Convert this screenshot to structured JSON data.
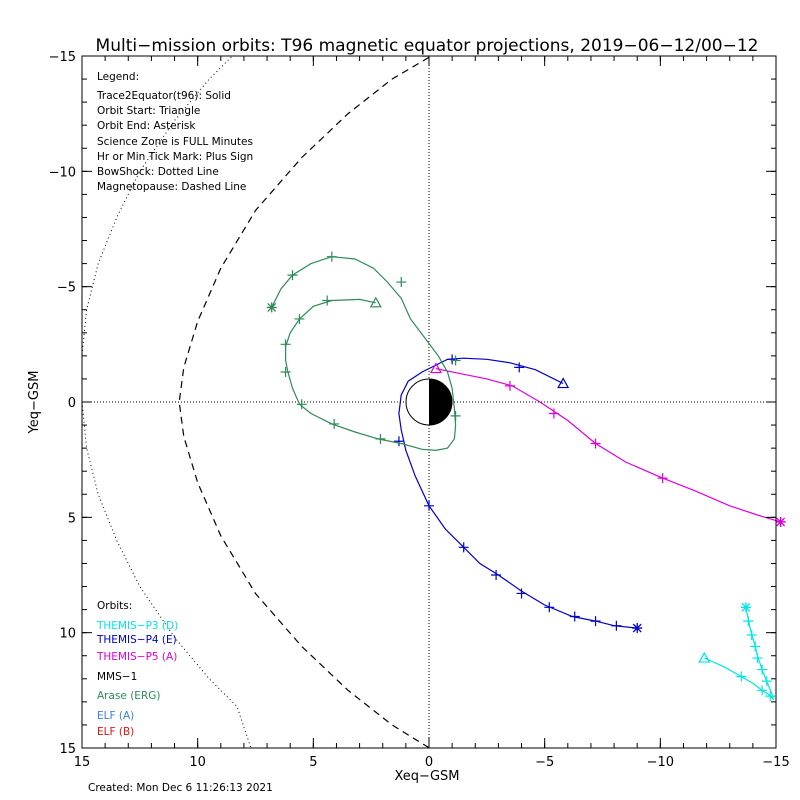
{
  "chart_data": {
    "type": "line",
    "title": "Multi−mission orbits: T96 magnetic equator projections, 2019−06−12/00−12",
    "xlabel": "Xeq−GSM",
    "ylabel": "Yeq−GSM",
    "xlim": [
      15,
      -15
    ],
    "ylim": [
      -15,
      15
    ],
    "x_ticks": [
      15,
      10,
      5,
      0,
      -5,
      -10,
      -15
    ],
    "x_tick_labels": [
      "15",
      "10",
      "5",
      "0",
      "−5",
      "−10",
      "−15"
    ],
    "y_ticks": [
      -15,
      -10,
      -5,
      0,
      5,
      10,
      15
    ],
    "y_tick_labels": [
      "−15",
      "−10",
      "−5",
      "0",
      "5",
      "10",
      "15"
    ],
    "legend": {
      "header": "Legend:",
      "lines": [
        "Trace2Equator(t96): Solid",
        "Orbit Start: Triangle",
        "Orbit End: Asterisk",
        "Science Zone is FULL Minutes",
        "Hr or Min Tick Mark: Plus Sign",
        "BowShock: Dotted Line",
        "Magnetopause: Dashed Line"
      ]
    },
    "orbits_header": "Orbits:",
    "orbits_legend": [
      {
        "label": "THEMIS−P3 (D)",
        "color": "#00e5e5"
      },
      {
        "label": "THEMIS−P4 (E)",
        "color": "#0000c8"
      },
      {
        "label": "THEMIS−P5 (A)",
        "color": "#e000e0"
      },
      {
        "label": "MMS−1",
        "color": "#000000"
      },
      {
        "label": "Arase (ERG)",
        "color": "#2e8b57"
      },
      {
        "label": "ELF (A)",
        "color": "#3a7fdc"
      },
      {
        "label": "ELF (B)",
        "color": "#dc1414"
      }
    ],
    "created": "Created: Mon Dec  6 11:26:13 2021",
    "boundaries": {
      "bowshock": {
        "style": "dotted",
        "points": [
          [
            8.3,
            -15.2
          ],
          [
            9.5,
            -14
          ],
          [
            11,
            -12.2
          ],
          [
            12.5,
            -10
          ],
          [
            13.5,
            -8
          ],
          [
            14.3,
            -6
          ],
          [
            14.8,
            -4
          ],
          [
            15,
            -2
          ],
          [
            15,
            0
          ],
          [
            14.8,
            2
          ],
          [
            14.3,
            4
          ],
          [
            13.5,
            6
          ],
          [
            12.5,
            8
          ],
          [
            11,
            10.2
          ],
          [
            9.5,
            12
          ],
          [
            8.3,
            13.2
          ],
          [
            7.7,
            15
          ]
        ]
      },
      "magnetopause": {
        "style": "dashed",
        "points": [
          [
            0.3,
            -15
          ],
          [
            -0.1,
            -15
          ],
          [
            1.6,
            -14
          ],
          [
            3.5,
            -12.5
          ],
          [
            5.5,
            -10.6
          ],
          [
            7.5,
            -8.3
          ],
          [
            9,
            -5.8
          ],
          [
            10,
            -3.5
          ],
          [
            10.6,
            -1.5
          ],
          [
            10.8,
            0
          ],
          [
            10.6,
            1.5
          ],
          [
            10,
            3.5
          ],
          [
            9,
            5.8
          ],
          [
            7.5,
            8.3
          ],
          [
            5.5,
            10.6
          ],
          [
            3.5,
            12.5
          ],
          [
            1.6,
            14
          ],
          [
            -0.5,
            15.3
          ]
        ]
      }
    },
    "series": [
      {
        "name": "THEMIS−P4 (E)",
        "color": "#0000c8",
        "start": [
          -5.8,
          -0.8
        ],
        "end": [
          -9.0,
          9.8
        ],
        "points": [
          [
            -5.8,
            -0.8
          ],
          [
            -4.6,
            -1.4
          ],
          [
            -3.5,
            -1.7
          ],
          [
            -2.5,
            -1.85
          ],
          [
            -1.5,
            -1.9
          ],
          [
            -0.8,
            -1.85
          ],
          [
            -0.3,
            -1.6
          ],
          [
            0.3,
            -1.3
          ],
          [
            0.9,
            -0.9
          ],
          [
            1.2,
            -0.3
          ],
          [
            1.3,
            0.5
          ],
          [
            1.2,
            1.2
          ],
          [
            1.0,
            2.1
          ],
          [
            0.6,
            3.2
          ],
          [
            0.0,
            4.5
          ],
          [
            -0.7,
            5.5
          ],
          [
            -1.5,
            6.3
          ],
          [
            -2.2,
            7.0
          ],
          [
            -3.0,
            7.5
          ],
          [
            -4.0,
            8.2
          ],
          [
            -5.0,
            8.8
          ],
          [
            -6.2,
            9.3
          ],
          [
            -7.2,
            9.5
          ],
          [
            -8.0,
            9.7
          ],
          [
            -9.0,
            9.8
          ]
        ],
        "ticks": [
          [
            -3.9,
            -1.5
          ],
          [
            -1.0,
            -1.85
          ],
          [
            1.3,
            1.7
          ],
          [
            0.0,
            4.5
          ],
          [
            -1.5,
            6.3
          ],
          [
            -2.9,
            7.5
          ],
          [
            -4.0,
            8.3
          ],
          [
            -5.2,
            8.9
          ],
          [
            -6.3,
            9.3
          ],
          [
            -7.2,
            9.5
          ],
          [
            -8.1,
            9.7
          ]
        ]
      },
      {
        "name": "THEMIS−P5 (A)",
        "color": "#e000e0",
        "start": [
          -0.3,
          -1.45
        ],
        "end": [
          -15.2,
          5.2
        ],
        "points": [
          [
            -0.3,
            -1.45
          ],
          [
            -1.5,
            -1.2
          ],
          [
            -2.5,
            -1.0
          ],
          [
            -3.6,
            -0.7
          ],
          [
            -4.8,
            0.0
          ],
          [
            -6.0,
            0.8
          ],
          [
            -7.2,
            1.8
          ],
          [
            -8.5,
            2.6
          ],
          [
            -10.1,
            3.3
          ],
          [
            -11.5,
            3.85
          ],
          [
            -13.0,
            4.5
          ],
          [
            -14.2,
            4.9
          ],
          [
            -15.2,
            5.2
          ]
        ],
        "ticks": [
          [
            -3.5,
            -0.7
          ],
          [
            -5.4,
            0.5
          ],
          [
            -7.2,
            1.8
          ],
          [
            -10.1,
            3.3
          ],
          [
            -15.2,
            5.2
          ]
        ]
      },
      {
        "name": "THEMIS−P3 (D)",
        "color": "#00e5e5",
        "start": [
          -11.9,
          11.1
        ],
        "end": [
          -13.7,
          8.9
        ],
        "points": [
          [
            -11.9,
            11.1
          ],
          [
            -12.8,
            11.5
          ],
          [
            -13.5,
            11.9
          ],
          [
            -14.0,
            12.2
          ],
          [
            -14.4,
            12.5
          ],
          [
            -14.7,
            12.7
          ],
          [
            -14.9,
            12.9
          ],
          [
            -14.8,
            12.6
          ],
          [
            -14.6,
            12.1
          ],
          [
            -14.4,
            11.6
          ],
          [
            -14.2,
            11.0
          ],
          [
            -14.05,
            10.4
          ],
          [
            -13.9,
            9.9
          ],
          [
            -13.8,
            9.4
          ],
          [
            -13.7,
            8.9
          ]
        ],
        "ticks": [
          [
            -13.5,
            11.9
          ],
          [
            -14.4,
            12.5
          ],
          [
            -14.75,
            12.75
          ],
          [
            -14.6,
            12.1
          ],
          [
            -14.4,
            11.6
          ],
          [
            -14.2,
            11.1
          ],
          [
            -14.1,
            10.6
          ],
          [
            -13.95,
            10.1
          ],
          [
            -13.8,
            9.5
          ]
        ]
      },
      {
        "name": "Arase (ERG)",
        "color": "#2e8b57",
        "start": [
          2.3,
          -4.3
        ],
        "end": [
          6.8,
          -4.1
        ],
        "points": [
          [
            2.3,
            -4.3
          ],
          [
            3.0,
            -4.45
          ],
          [
            4.2,
            -4.4
          ],
          [
            5.0,
            -4.15
          ],
          [
            5.6,
            -3.6
          ],
          [
            6.0,
            -3.0
          ],
          [
            6.2,
            -2.4
          ],
          [
            6.2,
            -1.8
          ],
          [
            6.1,
            -1.3
          ],
          [
            5.9,
            -0.6
          ],
          [
            5.6,
            0.1
          ],
          [
            5.1,
            0.5
          ],
          [
            4.2,
            0.95
          ],
          [
            3.2,
            1.3
          ],
          [
            2.2,
            1.6
          ],
          [
            1.2,
            1.8
          ],
          [
            0.3,
            2.05
          ],
          [
            -0.3,
            2.1
          ],
          [
            -0.8,
            2.0
          ],
          [
            -1.1,
            1.6
          ],
          [
            -1.15,
            1.0
          ],
          [
            -1.1,
            0.3
          ],
          [
            -1.0,
            -0.6
          ],
          [
            -0.8,
            -1.3
          ],
          [
            -0.4,
            -2.0
          ],
          [
            0.2,
            -2.8
          ],
          [
            0.8,
            -3.6
          ],
          [
            1.2,
            -4.5
          ],
          [
            1.8,
            -5.2
          ],
          [
            2.4,
            -5.8
          ],
          [
            3.2,
            -6.2
          ],
          [
            4.2,
            -6.3
          ],
          [
            5.1,
            -6.0
          ],
          [
            5.9,
            -5.5
          ],
          [
            6.4,
            -4.9
          ],
          [
            6.8,
            -4.1
          ]
        ],
        "ticks": [
          [
            4.4,
            -4.4
          ],
          [
            5.6,
            -3.6
          ],
          [
            6.2,
            -2.5
          ],
          [
            6.2,
            -1.3
          ],
          [
            5.5,
            0.1
          ],
          [
            4.1,
            0.95
          ],
          [
            2.1,
            1.6
          ],
          [
            -1.15,
            0.6
          ],
          [
            -1.15,
            -1.8
          ],
          [
            1.2,
            -5.2
          ],
          [
            4.2,
            -6.3
          ],
          [
            5.9,
            -5.5
          ]
        ]
      }
    ]
  }
}
